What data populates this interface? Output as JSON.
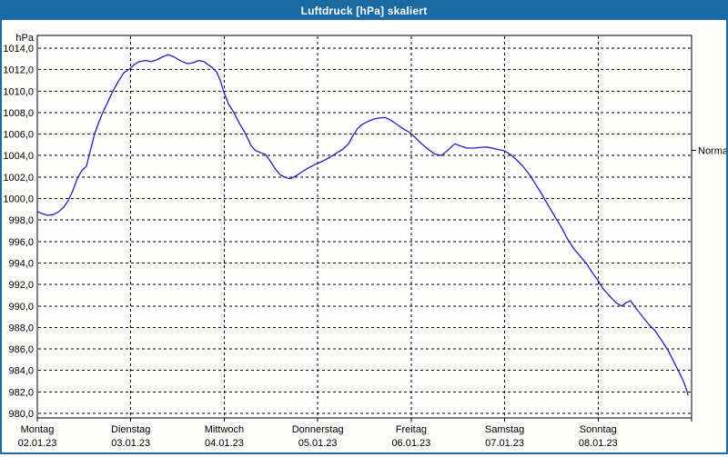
{
  "window": {
    "title": "Luftdruck [hPa] skaliert"
  },
  "colors": {
    "titlebar_bg": "#1a6aa3",
    "window_border": "#1a6aa3",
    "plot_bg": "#fdfdfb",
    "grid": "#000000",
    "axis": "#000000",
    "text": "#000000",
    "line": "#2121b8"
  },
  "chart_data": {
    "type": "line",
    "title": "Luftdruck [hPa] skaliert",
    "unit_label": "hPa",
    "ylim": [
      980,
      1014
    ],
    "y_tick_step": 2,
    "y_ticks": [
      {
        "label": "1014,0",
        "value": 1014
      },
      {
        "label": "1012,0",
        "value": 1012
      },
      {
        "label": "1010,0",
        "value": 1010
      },
      {
        "label": "1008,0",
        "value": 1008
      },
      {
        "label": "1006,0",
        "value": 1006
      },
      {
        "label": "1004,0",
        "value": 1004
      },
      {
        "label": "1002,0",
        "value": 1002
      },
      {
        "label": "1000,0",
        "value": 1000
      },
      {
        "label": "998,0",
        "value": 998
      },
      {
        "label": "996,0",
        "value": 996
      },
      {
        "label": "994,0",
        "value": 994
      },
      {
        "label": "992,0",
        "value": 992
      },
      {
        "label": "990,0",
        "value": 990
      },
      {
        "label": "988,0",
        "value": 988
      },
      {
        "label": "986,0",
        "value": 986
      },
      {
        "label": "984,0",
        "value": 984
      },
      {
        "label": "982,0",
        "value": 982
      },
      {
        "label": "980,0",
        "value": 980
      }
    ],
    "x_days": [
      {
        "name": "Montag",
        "date": "02.01.23"
      },
      {
        "name": "Dienstag",
        "date": "03.01.23"
      },
      {
        "name": "Mittwoch",
        "date": "04.01.23"
      },
      {
        "name": "Donnerstag",
        "date": "05.01.23"
      },
      {
        "name": "Freitag",
        "date": "06.01.23"
      },
      {
        "name": "Samstag",
        "date": "07.01.23"
      },
      {
        "name": "Sonntag",
        "date": "08.01.23"
      }
    ],
    "x_hours_total": 168,
    "grid": "dashed",
    "legend_position": "none",
    "normal_marker": {
      "label": "Normal",
      "value": 1004.5
    },
    "series": [
      {
        "name": "Luftdruck",
        "unit": "hPa",
        "points": [
          [
            0,
            998.8
          ],
          [
            1.2,
            998.6
          ],
          [
            2.6,
            998.45
          ],
          [
            4,
            998.5
          ],
          [
            5.4,
            998.75
          ],
          [
            6.8,
            999.2
          ],
          [
            7.9,
            999.8
          ],
          [
            9.1,
            1000.7
          ],
          [
            10.3,
            1001.9
          ],
          [
            11.4,
            1002.6
          ],
          [
            12.6,
            1003.0
          ],
          [
            13.3,
            1004.0
          ],
          [
            14.7,
            1006.0
          ],
          [
            15.9,
            1007.2
          ],
          [
            16.8,
            1008.0
          ],
          [
            18,
            1008.9
          ],
          [
            19.4,
            1010.0
          ],
          [
            20.8,
            1010.9
          ],
          [
            22.2,
            1011.7
          ],
          [
            23.8,
            1012.1
          ],
          [
            25,
            1012.5
          ],
          [
            26.2,
            1012.75
          ],
          [
            27.8,
            1012.85
          ],
          [
            29.2,
            1012.75
          ],
          [
            30.6,
            1012.9
          ],
          [
            32.2,
            1013.2
          ],
          [
            33.6,
            1013.4
          ],
          [
            35,
            1013.2
          ],
          [
            36.9,
            1012.8
          ],
          [
            38.6,
            1012.55
          ],
          [
            40,
            1012.65
          ],
          [
            41.4,
            1012.85
          ],
          [
            42.8,
            1012.75
          ],
          [
            43.7,
            1012.5
          ],
          [
            44.9,
            1012.2
          ],
          [
            46,
            1011.8
          ],
          [
            47,
            1011.0
          ],
          [
            47.9,
            1009.9
          ],
          [
            49.1,
            1008.8
          ],
          [
            50.5,
            1008.0
          ],
          [
            51.9,
            1007.0
          ],
          [
            53.5,
            1006.0
          ],
          [
            54.9,
            1004.9
          ],
          [
            56.1,
            1004.45
          ],
          [
            57.5,
            1004.25
          ],
          [
            58.6,
            1004.1
          ],
          [
            59.8,
            1003.5
          ],
          [
            61,
            1002.8
          ],
          [
            62.4,
            1002.2
          ],
          [
            63.8,
            1001.95
          ],
          [
            65,
            1001.85
          ],
          [
            66.4,
            1002.1
          ],
          [
            68,
            1002.5
          ],
          [
            69.6,
            1002.85
          ],
          [
            71.5,
            1003.2
          ],
          [
            73.4,
            1003.5
          ],
          [
            75.2,
            1003.85
          ],
          [
            77.1,
            1004.3
          ],
          [
            78.5,
            1004.6
          ],
          [
            79.9,
            1005.1
          ],
          [
            81.1,
            1005.9
          ],
          [
            82.2,
            1006.5
          ],
          [
            83.6,
            1006.95
          ],
          [
            85,
            1007.2
          ],
          [
            86.4,
            1007.4
          ],
          [
            87.8,
            1007.5
          ],
          [
            89.3,
            1007.55
          ],
          [
            90.7,
            1007.3
          ],
          [
            92.3,
            1006.9
          ],
          [
            93.9,
            1006.5
          ],
          [
            95.1,
            1006.25
          ],
          [
            95.8,
            1006.1
          ],
          [
            97,
            1005.7
          ],
          [
            98.1,
            1005.3
          ],
          [
            99.3,
            1004.9
          ],
          [
            100.7,
            1004.5
          ],
          [
            102.1,
            1004.15
          ],
          [
            103.7,
            1004.0
          ],
          [
            105.1,
            1004.4
          ],
          [
            106.3,
            1004.8
          ],
          [
            107.2,
            1005.1
          ],
          [
            108.6,
            1004.9
          ],
          [
            110.3,
            1004.7
          ],
          [
            111.9,
            1004.7
          ],
          [
            113.5,
            1004.75
          ],
          [
            115.2,
            1004.8
          ],
          [
            116.8,
            1004.7
          ],
          [
            118.5,
            1004.55
          ],
          [
            119.9,
            1004.45
          ],
          [
            121.5,
            1004.1
          ],
          [
            123.1,
            1003.6
          ],
          [
            124.8,
            1002.95
          ],
          [
            126.4,
            1002.2
          ],
          [
            128,
            1001.3
          ],
          [
            129.7,
            1000.3
          ],
          [
            131.3,
            999.3
          ],
          [
            132.9,
            998.3
          ],
          [
            134.6,
            997.3
          ],
          [
            136.2,
            996.2
          ],
          [
            137.8,
            995.3
          ],
          [
            139.5,
            994.6
          ],
          [
            141.1,
            993.9
          ],
          [
            142.5,
            993.1
          ],
          [
            143.9,
            992.4
          ],
          [
            145.3,
            991.6
          ],
          [
            147,
            990.9
          ],
          [
            148.6,
            990.3
          ],
          [
            150,
            990.0
          ],
          [
            151.2,
            990.3
          ],
          [
            152.3,
            990.5
          ],
          [
            153.7,
            989.8
          ],
          [
            155.4,
            989.0
          ],
          [
            157,
            988.3
          ],
          [
            158.6,
            987.7
          ],
          [
            160.3,
            986.8
          ],
          [
            161.9,
            985.9
          ],
          [
            163.3,
            984.9
          ],
          [
            164.7,
            983.9
          ],
          [
            165.9,
            983.0
          ],
          [
            166.6,
            982.3
          ],
          [
            167.1,
            981.7
          ]
        ]
      }
    ]
  }
}
